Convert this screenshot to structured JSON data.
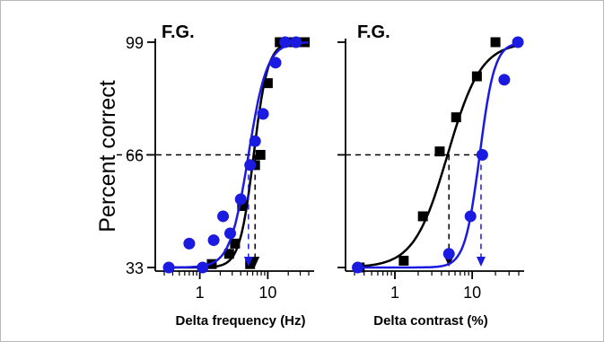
{
  "chart_data": [
    {
      "type": "scatter",
      "panel_label": "F.G.",
      "xlabel": "Delta frequency (Hz)",
      "ylabel": "Percent correct",
      "x_scale": "log",
      "xlim": [
        0.3,
        40
      ],
      "ylim": [
        33,
        99
      ],
      "x_ticks": [
        1,
        10
      ],
      "x_tick_labels": [
        "1",
        "10"
      ],
      "y_ticks": [
        33,
        66,
        99
      ],
      "y_tick_labels": [
        "33",
        "66",
        "99"
      ],
      "reference_line_y": 66,
      "colors": {
        "black": "#000000",
        "blue": "#1a1ae0"
      },
      "series": [
        {
          "marker": "square",
          "color": "#000000",
          "points": [
            {
              "x": 1.5,
              "y": 34
            },
            {
              "x": 2.7,
              "y": 37
            },
            {
              "x": 3.3,
              "y": 40
            },
            {
              "x": 4.2,
              "y": 51
            },
            {
              "x": 5.5,
              "y": 34
            },
            {
              "x": 6.5,
              "y": 63
            },
            {
              "x": 7.8,
              "y": 66
            },
            {
              "x": 10,
              "y": 87
            },
            {
              "x": 15,
              "y": 99
            },
            {
              "x": 20,
              "y": 99
            },
            {
              "x": 28,
              "y": 99
            },
            {
              "x": 35,
              "y": 99
            }
          ],
          "curve": {
            "midpoint": 6.2,
            "slope": 4.2
          },
          "threshold": 6.5
        },
        {
          "marker": "circle",
          "color": "#1a1ae0",
          "points": [
            {
              "x": 0.35,
              "y": 33
            },
            {
              "x": 0.7,
              "y": 40
            },
            {
              "x": 1.1,
              "y": 33
            },
            {
              "x": 1.6,
              "y": 41
            },
            {
              "x": 2.2,
              "y": 48
            },
            {
              "x": 2.8,
              "y": 43
            },
            {
              "x": 4.0,
              "y": 53
            },
            {
              "x": 5.5,
              "y": 63
            },
            {
              "x": 6.5,
              "y": 70
            },
            {
              "x": 8.5,
              "y": 78
            },
            {
              "x": 13,
              "y": 93
            },
            {
              "x": 18,
              "y": 99
            },
            {
              "x": 26,
              "y": 99
            }
          ],
          "curve": {
            "midpoint": 5.2,
            "slope": 3.2
          },
          "threshold": 5.2
        }
      ]
    },
    {
      "type": "scatter",
      "panel_label": "F.G.",
      "xlabel": "Delta contrast (%)",
      "ylabel": "",
      "x_scale": "log",
      "xlim": [
        0.3,
        40
      ],
      "ylim": [
        33,
        99
      ],
      "x_ticks": [
        1,
        10
      ],
      "x_tick_labels": [
        "1",
        "10"
      ],
      "reference_line_y": 66,
      "colors": {
        "black": "#000000",
        "blue": "#1a1ae0"
      },
      "series": [
        {
          "marker": "square",
          "color": "#000000",
          "points": [
            {
              "x": 0.35,
              "y": 33
            },
            {
              "x": 1.3,
              "y": 35
            },
            {
              "x": 2.3,
              "y": 48
            },
            {
              "x": 3.8,
              "y": 67
            },
            {
              "x": 6.2,
              "y": 77
            },
            {
              "x": 11.5,
              "y": 89
            },
            {
              "x": 20,
              "y": 99
            }
          ],
          "curve": {
            "midpoint": 4.8,
            "slope": 2.0
          },
          "threshold": 5.0
        },
        {
          "marker": "circle",
          "color": "#1a1ae0",
          "points": [
            {
              "x": 0.33,
              "y": 33
            },
            {
              "x": 5.0,
              "y": 37
            },
            {
              "x": 9.5,
              "y": 48
            },
            {
              "x": 13.5,
              "y": 66
            },
            {
              "x": 26,
              "y": 88
            },
            {
              "x": 39,
              "y": 99
            }
          ],
          "curve": {
            "midpoint": 12.5,
            "slope": 4.5
          },
          "threshold": 13
        }
      ]
    }
  ]
}
